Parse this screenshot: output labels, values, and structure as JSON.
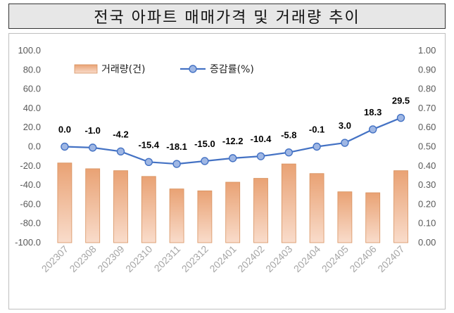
{
  "header": {
    "title": "전국 아파트 매매가격 및 거래량 추이"
  },
  "chart_data": {
    "type": "bar",
    "categories": [
      "202307",
      "202308",
      "202309",
      "202310",
      "202311",
      "202312",
      "202401",
      "202402",
      "202403",
      "202404",
      "202405",
      "202406",
      "202407"
    ],
    "series": [
      {
        "name": "거래량(건)",
        "type": "bar",
        "axis": "left",
        "values": [
          -17,
          -23,
          -25,
          -31,
          -44,
          -46,
          -37,
          -33,
          -18,
          -28,
          -47,
          -48,
          -25
        ]
      },
      {
        "name": "증감률(%)",
        "type": "line",
        "axis": "right",
        "values": [
          0.5,
          0.495,
          0.475,
          0.42,
          0.41,
          0.425,
          0.44,
          0.45,
          0.47,
          0.5,
          0.52,
          0.59,
          0.65
        ],
        "labels": [
          "0.0",
          "-1.0",
          "-4.2",
          "-15.4",
          "-18.1",
          "-15.0",
          "-12.2",
          "-10.4",
          "-5.8",
          "-0.1",
          "3.0",
          "18.3",
          "29.5"
        ]
      }
    ],
    "left_axis": {
      "ylim": [
        -100,
        100
      ],
      "ticks": [
        "100.0",
        "80.0",
        "60.0",
        "40.0",
        "20.0",
        "0.0",
        "-20.0",
        "-40.0",
        "-60.0",
        "-80.0",
        "-100.0"
      ]
    },
    "right_axis": {
      "ylim": [
        0,
        1
      ],
      "ticks": [
        "1.00",
        "0.90",
        "0.80",
        "0.70",
        "0.60",
        "0.50",
        "0.40",
        "0.30",
        "0.20",
        "0.10",
        "0.00"
      ]
    },
    "legend_position": "top-left",
    "grid": false,
    "colors": {
      "bar_top": "#e9a274",
      "bar_bottom": "#f9dccb",
      "bar_edge": "#d8925f",
      "line": "#4472c4",
      "marker_fill": "#9fb7e4",
      "marker_edge": "#4472c4"
    }
  }
}
